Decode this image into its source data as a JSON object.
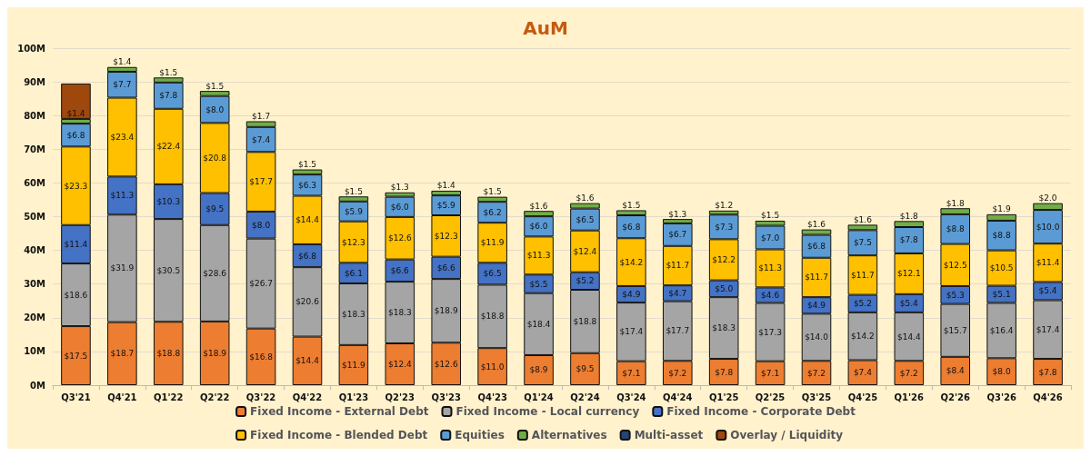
{
  "chart_data": {
    "type": "bar",
    "title": "AuM",
    "stacked": true,
    "grid": "y",
    "legend": "bottom",
    "categories": [
      "Q3'21",
      "Q4'21",
      "Q1'22",
      "Q2'22",
      "Q3'22",
      "Q4'22",
      "Q1'23",
      "Q2'23",
      "Q3'23",
      "Q4'23",
      "Q1'24",
      "Q2'24",
      "Q3'24",
      "Q4'24",
      "Q1'25",
      "Q2'25",
      "Q3'25",
      "Q4'25",
      "Q1'26",
      "Q2'26",
      "Q3'26",
      "Q4'26"
    ],
    "ylim": [
      0,
      100
    ],
    "yticks": [
      {
        "value": 0,
        "label": "0M"
      },
      {
        "value": 10,
        "label": "10M"
      },
      {
        "value": 20,
        "label": "20M"
      },
      {
        "value": 30,
        "label": "30M"
      },
      {
        "value": 40,
        "label": "40M"
      },
      {
        "value": 50,
        "label": "50M"
      },
      {
        "value": 60,
        "label": "60M"
      },
      {
        "value": 70,
        "label": "70M"
      },
      {
        "value": 80,
        "label": "80M"
      },
      {
        "value": 90,
        "label": "90M"
      },
      {
        "value": 100,
        "label": "100M"
      }
    ],
    "series": [
      {
        "name": "Fixed Income - External Debt",
        "color": "#ed7d31",
        "values": [
          17.5,
          18.7,
          18.8,
          18.9,
          16.8,
          14.4,
          11.9,
          12.4,
          12.6,
          11.0,
          8.9,
          9.5,
          7.1,
          7.2,
          7.8,
          7.1,
          7.2,
          7.4,
          7.2,
          8.4,
          8.0,
          7.8
        ],
        "value_labels": [
          "$17.5",
          "$18.7",
          "$18.8",
          "$18.9",
          "$16.8",
          "$14.4",
          "$11.9",
          "$12.4",
          "$12.6",
          "$11.0",
          "$8.9",
          "$9.5",
          "$7.1",
          "$7.2",
          "$7.8",
          "$7.1",
          "$7.2",
          "$7.4",
          "$7.2",
          "$8.4",
          "$8.0",
          "$7.8"
        ]
      },
      {
        "name": "Fixed Income - Local currency",
        "color": "#a5a5a5",
        "values": [
          18.6,
          31.9,
          30.5,
          28.6,
          26.7,
          20.6,
          18.3,
          18.3,
          18.9,
          18.8,
          18.4,
          18.8,
          17.4,
          17.7,
          18.3,
          17.3,
          14.0,
          14.2,
          14.4,
          15.7,
          16.4,
          17.4
        ],
        "value_labels": [
          "$18.6",
          "$31.9",
          "$30.5",
          "$28.6",
          "$26.7",
          "$20.6",
          "$18.3",
          "$18.3",
          "$18.9",
          "$18.8",
          "$18.4",
          "$18.8",
          "$17.4",
          "$17.7",
          "$18.3",
          "$17.3",
          "$14.0",
          "$14.2",
          "$14.4",
          "$15.7",
          "$16.4",
          "$17.4"
        ]
      },
      {
        "name": "Fixed Income - Corporate Debt",
        "color": "#4472c4",
        "values": [
          11.4,
          11.3,
          10.3,
          9.5,
          8.0,
          6.8,
          6.1,
          6.6,
          6.6,
          6.5,
          5.5,
          5.2,
          4.9,
          4.7,
          5.0,
          4.6,
          4.9,
          5.2,
          5.4,
          5.3,
          5.1,
          5.4
        ],
        "value_labels": [
          "$11.4",
          "$11.3",
          "$10.3",
          "$9.5",
          "$8.0",
          "$6.8",
          "$6.1",
          "$6.6",
          "$6.6",
          "$6.5",
          "$5.5",
          "$5.2",
          "$4.9",
          "$4.7",
          "$5.0",
          "$4.6",
          "$4.9",
          "$5.2",
          "$5.4",
          "$5.3",
          "$5.1",
          "$5.4"
        ]
      },
      {
        "name": "Fixed Income - Blended Debt",
        "color": "#ffc000",
        "values": [
          23.3,
          23.4,
          22.4,
          20.8,
          17.7,
          14.4,
          12.3,
          12.6,
          12.3,
          11.9,
          11.3,
          12.4,
          14.2,
          11.7,
          12.2,
          11.3,
          11.7,
          11.7,
          12.1,
          12.5,
          10.5,
          11.4
        ],
        "value_labels": [
          "$23.3",
          "$23.4",
          "$22.4",
          "$20.8",
          "$17.7",
          "$14.4",
          "$12.3",
          "$12.6",
          "$12.3",
          "$11.9",
          "$11.3",
          "$12.4",
          "$14.2",
          "$11.7",
          "$12.2",
          "$11.3",
          "$11.7",
          "$11.7",
          "$12.1",
          "$12.5",
          "$10.5",
          "$11.4"
        ]
      },
      {
        "name": "Equities",
        "color": "#5b9bd5",
        "values": [
          6.8,
          7.7,
          7.8,
          8.0,
          7.4,
          6.3,
          5.9,
          6.0,
          5.9,
          6.2,
          6.0,
          6.5,
          6.8,
          6.7,
          7.3,
          7.0,
          6.8,
          7.5,
          7.8,
          8.8,
          8.8,
          10.0
        ],
        "value_labels": [
          "$6.8",
          "$7.7",
          "$7.8",
          "$8.0",
          "$7.4",
          "$6.3",
          "$5.9",
          "$6.0",
          "$5.9",
          "$6.2",
          "$6.0",
          "$6.5",
          "$6.8",
          "$6.7",
          "$7.3",
          "$7.0",
          "$6.8",
          "$7.5",
          "$7.8",
          "$8.8",
          "$8.8",
          "$10.0"
        ]
      },
      {
        "name": "Alternatives",
        "color": "#70ad47",
        "values": [
          1.4,
          1.4,
          1.5,
          1.5,
          1.7,
          1.5,
          1.5,
          1.3,
          1.4,
          1.5,
          1.6,
          1.6,
          1.5,
          1.3,
          1.2,
          1.5,
          1.6,
          1.6,
          1.8,
          1.8,
          1.9,
          2.0
        ],
        "value_labels": [
          "$1.4",
          "$1.4",
          "$1.5",
          "$1.5",
          "$1.7",
          "$1.5",
          "$1.5",
          "$1.3",
          "$1.4",
          "$1.5",
          "$1.6",
          "$1.6",
          "$1.5",
          "$1.3",
          "$1.2",
          "$1.5",
          "$1.6",
          "$1.6",
          "$1.8",
          "$1.8",
          "$1.9",
          "$2.0"
        ]
      },
      {
        "name": "Multi-asset",
        "color": "#264478",
        "values": [
          null,
          null,
          null,
          null,
          null,
          null,
          null,
          null,
          null,
          null,
          null,
          null,
          null,
          null,
          null,
          null,
          null,
          null,
          null,
          null,
          null,
          null
        ]
      },
      {
        "name": "Overlay / Liquidity",
        "color": "#9e480e",
        "values": [
          10.5,
          null,
          null,
          null,
          null,
          null,
          null,
          null,
          null,
          null,
          null,
          null,
          null,
          null,
          null,
          null,
          null,
          null,
          null,
          null,
          null,
          null
        ]
      }
    ]
  }
}
